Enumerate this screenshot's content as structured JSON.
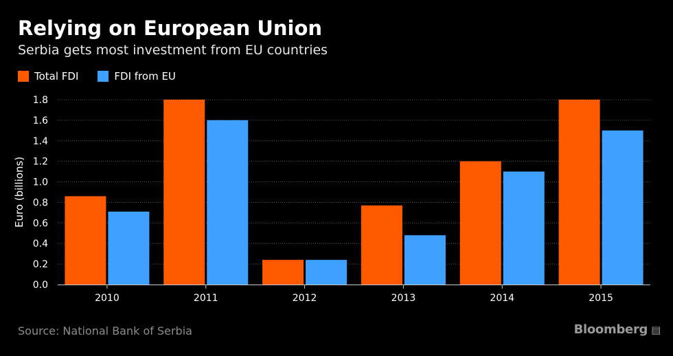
{
  "header": {
    "title": "Relying on European Union",
    "subtitle": "Serbia gets most investment from EU countries"
  },
  "footer": {
    "source": "Source: National Bank of Serbia",
    "brand": "Bloomberg",
    "brand_icon": "bloomberg-terminal-icon"
  },
  "colors": {
    "background": "#000000",
    "total_fdi": "#ff5a00",
    "fdi_eu": "#3fa1ff",
    "grid": "#5a5a5a",
    "axis": "#cccccc"
  },
  "chart_data": {
    "type": "bar",
    "title": "Relying on European Union",
    "subtitle": "Serbia gets most investment from EU countries",
    "xlabel": "",
    "ylabel": "Euro (billions)",
    "ylim": [
      0,
      1.8
    ],
    "yticks": [
      "0.0",
      "0.2",
      "0.4",
      "0.6",
      "0.8",
      "1.0",
      "1.2",
      "1.4",
      "1.6",
      "1.8"
    ],
    "ytick_values": [
      0,
      0.2,
      0.4,
      0.6,
      0.8,
      1.0,
      1.2,
      1.4,
      1.6,
      1.8
    ],
    "grid": true,
    "legend_position": "top-left",
    "categories": [
      "2010",
      "2011",
      "2012",
      "2013",
      "2014",
      "2015"
    ],
    "series": [
      {
        "name": "Total FDI",
        "color": "#ff5a00",
        "values": [
          0.86,
          1.8,
          0.24,
          0.77,
          1.2,
          1.8
        ]
      },
      {
        "name": "FDI from EU",
        "color": "#3fa1ff",
        "values": [
          0.71,
          1.6,
          0.24,
          0.48,
          1.1,
          1.5
        ]
      }
    ]
  }
}
